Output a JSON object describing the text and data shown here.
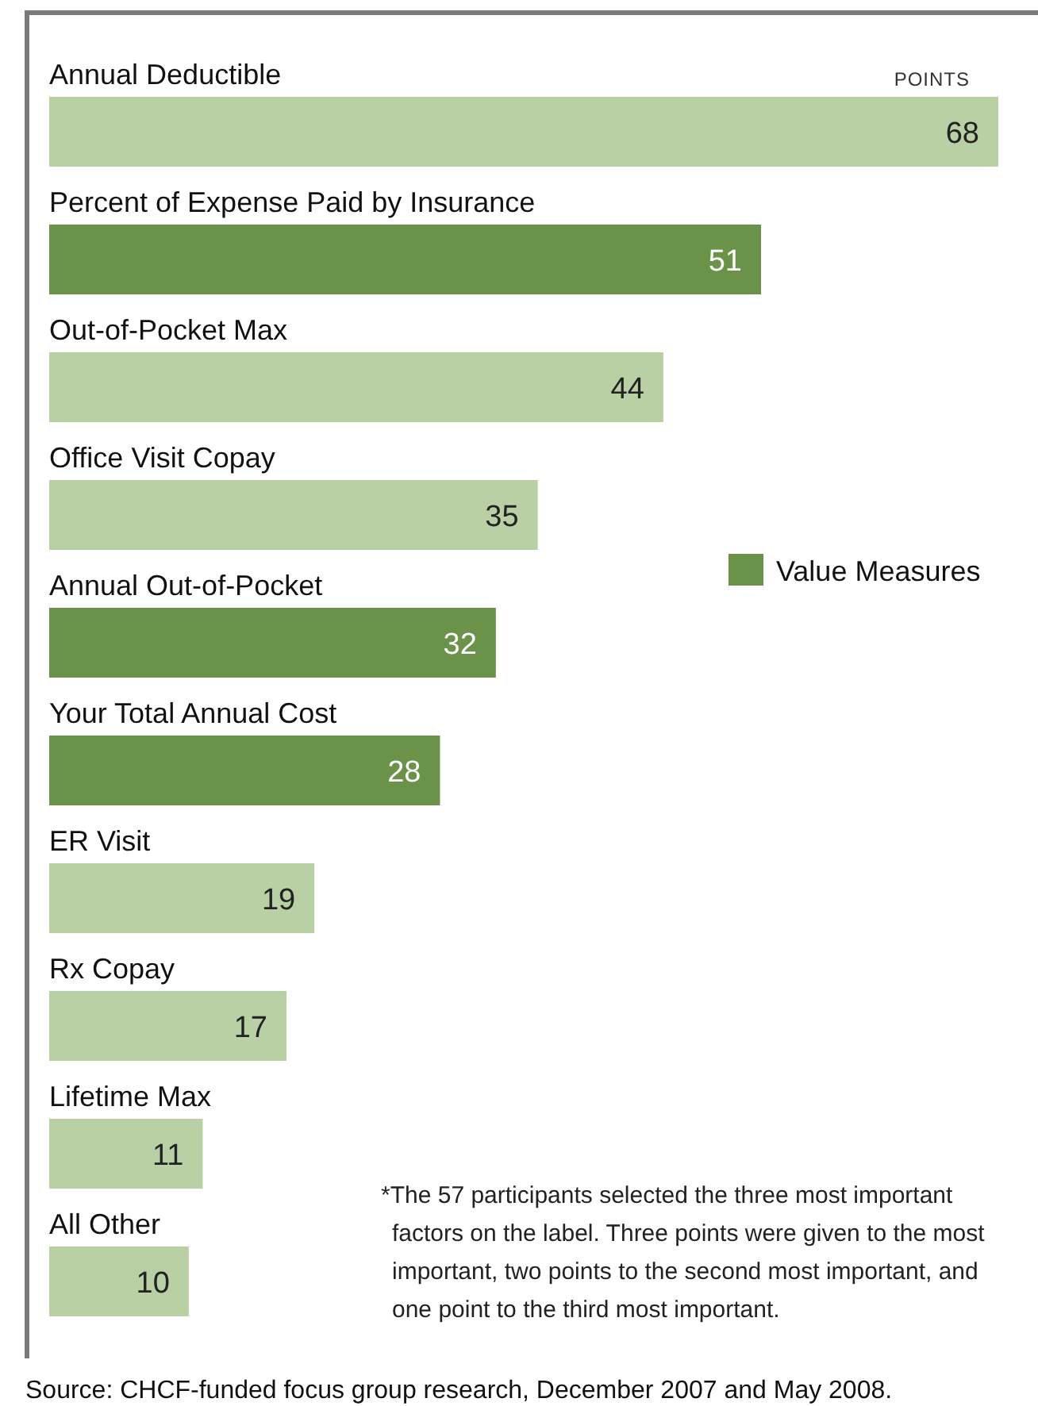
{
  "chart_data": {
    "type": "bar",
    "orientation": "horizontal",
    "stacked": true,
    "xlabel": "POINTS",
    "categories": [
      "Annual Deductible",
      "Percent of Expense Paid by Insurance",
      "Out-of-Pocket Max",
      "Office Visit Copay",
      "Annual Out-of-Pocket",
      "Your Total Annual Cost",
      "ER Visit",
      "Rx Copay",
      "Lifetime Max",
      "All Other"
    ],
    "series": [
      {
        "color": "#b9cfa4",
        "values": [
          68,
          null,
          44,
          35,
          null,
          null,
          19,
          17,
          11,
          10
        ]
      },
      {
        "name": "Value Measures",
        "color": "#6a9349",
        "values": [
          null,
          51,
          null,
          null,
          32,
          28,
          null,
          null,
          null,
          null
        ]
      }
    ],
    "data_labels": true,
    "legend": "right",
    "annotations": [
      "*The 57 participants selected the three most important factors on the label. Three points were given to the most important, two points to the second most important, and one point to the third most important.",
      "Source: CHCF-funded focus group research, December 2007 and May 2008."
    ]
  }
}
